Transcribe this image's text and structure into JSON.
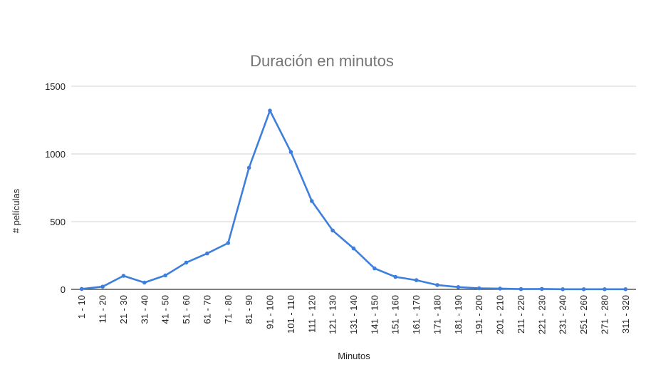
{
  "chart_data": {
    "type": "line",
    "title": "Duración en minutos",
    "xlabel": "Minutos",
    "ylabel": "# películas",
    "ylim": [
      0,
      1500
    ],
    "yticks": [
      0,
      500,
      1000,
      1500
    ],
    "grid": true,
    "legend": "none",
    "color": "#3f7fdc",
    "categories": [
      "1 - 10",
      "11 - 20",
      "21 - 30",
      "31 - 40",
      "41 - 50",
      "51 - 60",
      "61 - 70",
      "71 - 80",
      "81 - 90",
      "91 - 100",
      "101 - 110",
      "111 - 120",
      "121 - 130",
      "131 - 140",
      "141 - 150",
      "151 - 160",
      "161 - 170",
      "171 - 180",
      "181 - 190",
      "191 - 200",
      "201 - 210",
      "211 - 220",
      "221 - 230",
      "231 - 240",
      "251 - 260",
      "271 - 280",
      "311 - 320"
    ],
    "series": [
      {
        "values": [
          3,
          20,
          100,
          50,
          103,
          198,
          265,
          342,
          898,
          1320,
          1015,
          652,
          435,
          302,
          155,
          92,
          68,
          32,
          17,
          8,
          6,
          2,
          3,
          1,
          1,
          1,
          1
        ]
      }
    ]
  }
}
